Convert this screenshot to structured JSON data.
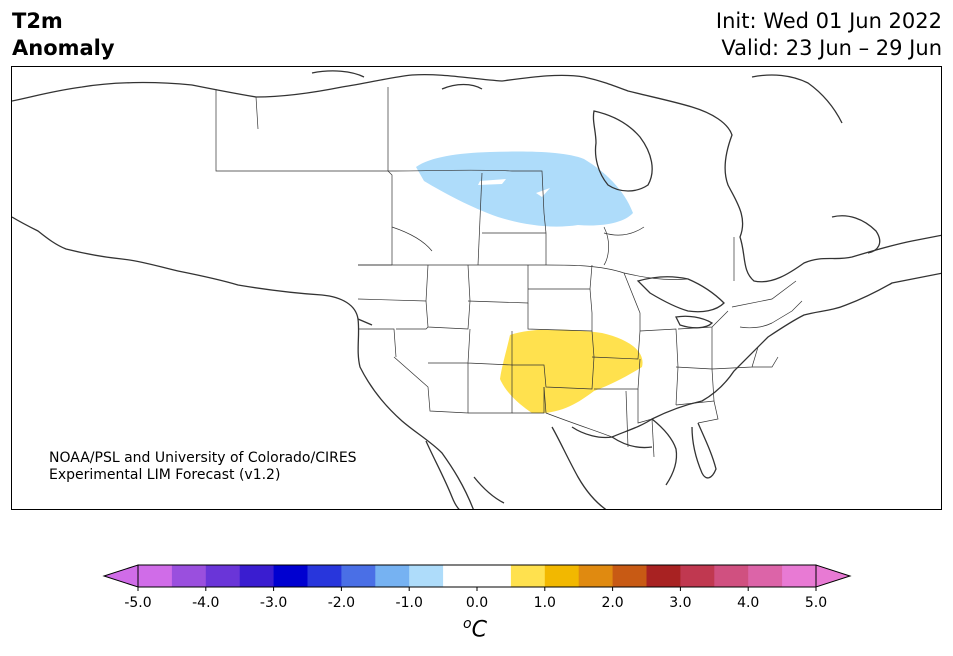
{
  "header": {
    "variable": "T2m",
    "quantity": "Anomaly",
    "init": "Init: Wed 01 Jun 2022",
    "valid": "Valid: 23 Jun – 29 Jun"
  },
  "credit": {
    "line1": "NOAA/PSL and University of Colorado/CIRES",
    "line2": "Experimental LIM Forecast (v1.2)"
  },
  "map": {
    "region": "North America",
    "anomaly_regions": [
      {
        "name": "cool-anomaly-canada-prairies",
        "value_bin": "-1.0 to -0.5",
        "color": "#aedcfa"
      },
      {
        "name": "warm-anomaly-central-plains",
        "value_bin": "0.5 to 1.0",
        "color": "#ffe14e"
      }
    ]
  },
  "colorbar": {
    "unit_base": "o",
    "unit_main": "C",
    "ticks": [
      "-5.0",
      "-4.0",
      "-3.0",
      "-2.0",
      "-1.0",
      "0.0",
      "1.0",
      "2.0",
      "3.0",
      "4.0",
      "5.0"
    ],
    "colors": [
      "#d06ce8",
      "#9a4fde",
      "#6a35d8",
      "#3a1dd0",
      "#0000d0",
      "#2836dc",
      "#4a6fe6",
      "#76b2f2",
      "#aedcfa",
      "#ffffff",
      "#ffffff",
      "#ffe14e",
      "#f2b800",
      "#e08a10",
      "#c85a14",
      "#a82222",
      "#c03850",
      "#d05080",
      "#dc64a8",
      "#e87ad4"
    ],
    "under_color": "#d06ce8",
    "over_color": "#e87ad4"
  }
}
